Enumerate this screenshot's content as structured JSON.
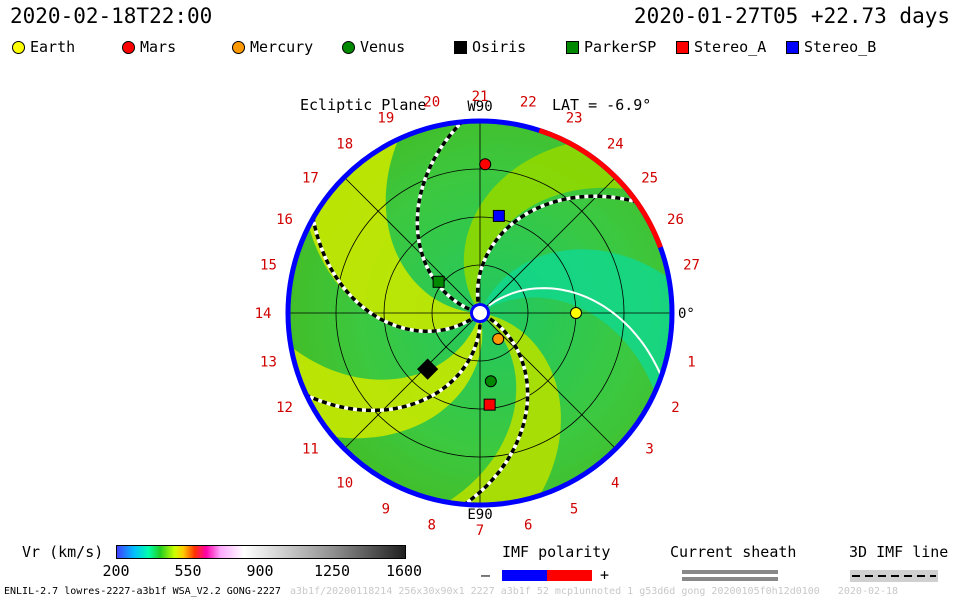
{
  "header": {
    "left": "2020-02-18T22:00",
    "right": "2020-01-27T05 +22.73 days"
  },
  "legend": [
    {
      "name": "Earth",
      "color": "#ffff00",
      "shape": "circle"
    },
    {
      "name": "Mars",
      "color": "#ff0000",
      "shape": "circle"
    },
    {
      "name": "Mercury",
      "color": "#ff9900",
      "shape": "circle"
    },
    {
      "name": "Venus",
      "color": "#008800",
      "shape": "circle"
    },
    {
      "name": "Osiris",
      "color": "#000000",
      "shape": "square"
    },
    {
      "name": "ParkerSP",
      "color": "#008800",
      "shape": "square"
    },
    {
      "name": "Stereo_A",
      "color": "#ff0000",
      "shape": "square"
    },
    {
      "name": "Stereo_B",
      "color": "#0000ff",
      "shape": "square"
    }
  ],
  "plot": {
    "title": "Ecliptic Plane",
    "top_label": "W90",
    "bottom_label": "E90",
    "right_label": "0°",
    "lat_label": "LAT = -6.9°"
  },
  "chart_data": {
    "type": "polar-map",
    "carrington_ticks": [
      "1",
      "2",
      "3",
      "4",
      "5",
      "6",
      "7",
      "8",
      "9",
      "10",
      "11",
      "12",
      "13",
      "14",
      "15",
      "16",
      "17",
      "18",
      "19",
      "20",
      "21",
      "22",
      "23",
      "24",
      "25",
      "26",
      "27"
    ],
    "colorbar": {
      "label": "Vr (km/s)",
      "ticks": [
        200,
        550,
        900,
        1250,
        1600
      ],
      "range": [
        200,
        1600
      ]
    },
    "bodies": [
      {
        "name": "Earth",
        "r_au": 1.0,
        "angle_deg": 0
      },
      {
        "name": "Mars",
        "r_au": 1.55,
        "angle_deg": 88
      },
      {
        "name": "Mercury",
        "r_au": 0.33,
        "angle_deg": -55
      },
      {
        "name": "Venus",
        "r_au": 0.72,
        "angle_deg": -81
      },
      {
        "name": "Osiris",
        "r_au": 0.8,
        "angle_deg": -133
      },
      {
        "name": "ParkerSP",
        "r_au": 0.54,
        "angle_deg": 143
      },
      {
        "name": "Stereo_A",
        "r_au": 0.96,
        "angle_deg": -84
      },
      {
        "name": "Stereo_B",
        "r_au": 1.03,
        "angle_deg": 79
      }
    ]
  },
  "bottom": {
    "imf_title": "IMF polarity",
    "imf_minus": "–",
    "imf_plus": "+",
    "sheath_title": "Current sheath",
    "imf3d_title": "3D IMF line"
  },
  "footer": {
    "left": "ENLIL-2.7 lowres-2227-a3b1f WSA_V2.2 GONG-2227",
    "faint": "a3b1f/20200118214 256x30x90x1 2227 a3b1f 52 mcp1unnoted 1 g53d6d gong 20200105f0h12d0100   2020-02-18"
  },
  "colors": {
    "frame_blue": "#0000ff",
    "frame_red": "#ff0000",
    "tick_red": "#d00000"
  }
}
